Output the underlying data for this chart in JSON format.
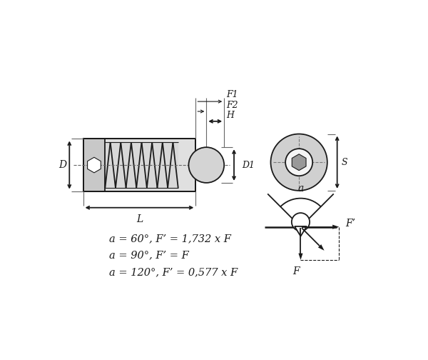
{
  "bg_color": "#ffffff",
  "line_color": "#1a1a1a",
  "lw": 1.3,
  "thin_lw": 0.8,
  "formula_lines": [
    "a = 60°, F’ = 1,732 x F",
    "a = 90°, F’ = F",
    "a = 120°, F’ = 0,577 x F"
  ],
  "labels": {
    "D": "D",
    "L": "L",
    "D1": "D1",
    "H": "H",
    "F1": "F1",
    "F2": "F2",
    "S": "S",
    "a": "a",
    "F": "F",
    "Fprime": "F’"
  }
}
